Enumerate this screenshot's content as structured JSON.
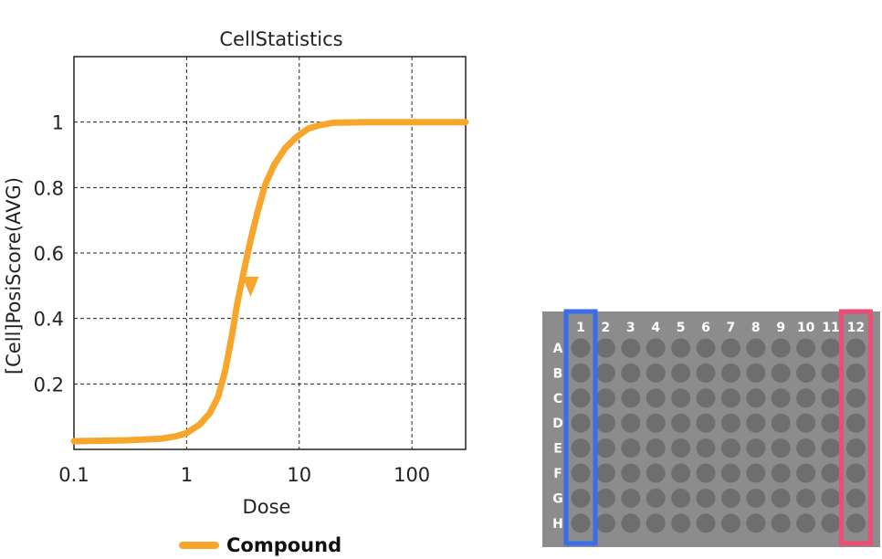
{
  "chart_data": {
    "type": "line",
    "title": "CellStatistics",
    "xlabel": "Dose",
    "ylabel": "[Cell]PosiScore(AVG)",
    "xscale": "log",
    "xlim": [
      0.1,
      300
    ],
    "ylim": [
      0,
      1.2
    ],
    "xticks": [
      {
        "value": 0.1,
        "label": "0.1"
      },
      {
        "value": 1,
        "label": "1"
      },
      {
        "value": 10,
        "label": "10"
      },
      {
        "value": 100,
        "label": "100"
      }
    ],
    "yticks": [
      {
        "value": 0.2,
        "label": "0.2"
      },
      {
        "value": 0.4,
        "label": "0.4"
      },
      {
        "value": 0.6,
        "label": "0.6"
      },
      {
        "value": 0.8,
        "label": "0.8"
      },
      {
        "value": 1.0,
        "label": "1"
      }
    ],
    "grid": true,
    "series": [
      {
        "name": "Compound",
        "color": "#f7a62b",
        "points": [
          [
            0.1,
            0.025
          ],
          [
            0.3,
            0.028
          ],
          [
            0.6,
            0.033
          ],
          [
            0.8,
            0.04
          ],
          [
            1.0,
            0.05
          ],
          [
            1.3,
            0.075
          ],
          [
            1.6,
            0.11
          ],
          [
            1.9,
            0.16
          ],
          [
            2.2,
            0.24
          ],
          [
            2.5,
            0.34
          ],
          [
            2.8,
            0.44
          ],
          [
            3.2,
            0.54
          ],
          [
            3.7,
            0.64
          ],
          [
            4.3,
            0.73
          ],
          [
            5.0,
            0.81
          ],
          [
            6.0,
            0.87
          ],
          [
            7.5,
            0.92
          ],
          [
            9.5,
            0.955
          ],
          [
            12,
            0.98
          ],
          [
            15,
            0.99
          ],
          [
            20,
            0.998
          ],
          [
            40,
            1.0
          ],
          [
            100,
            1.0
          ],
          [
            300,
            1.0
          ]
        ],
        "marker": {
          "shape": "triangle-down",
          "x": 3.7,
          "y": 0.5
        }
      }
    ],
    "legend": {
      "position": "bottom",
      "entries": [
        "Compound"
      ]
    }
  },
  "plate": {
    "columns": [
      "1",
      "2",
      "3",
      "4",
      "5",
      "6",
      "7",
      "8",
      "9",
      "10",
      "11",
      "12"
    ],
    "rows": [
      "A",
      "B",
      "C",
      "D",
      "E",
      "F",
      "G",
      "H"
    ],
    "highlight_columns": [
      {
        "column": "1",
        "color": "#3a6de8"
      },
      {
        "column": "12",
        "color": "#ee4d73"
      }
    ],
    "background_color": "#8c8c8c",
    "well_color": "#6e6e6e"
  }
}
